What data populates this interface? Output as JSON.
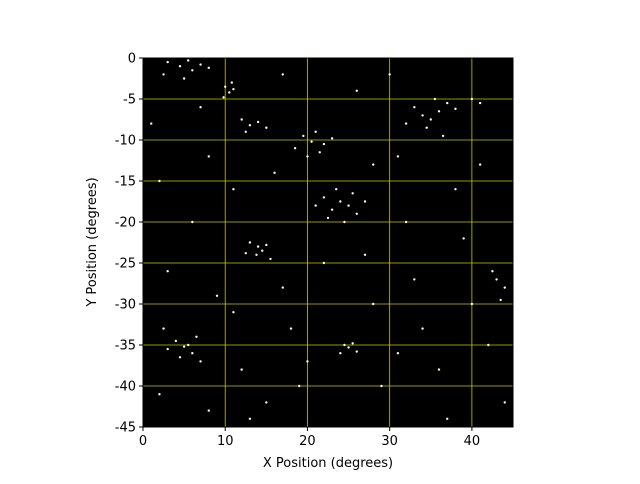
{
  "chart_data": {
    "type": "scatter",
    "xlabel": "X Position (degrees)",
    "ylabel": "Y Position (degrees)",
    "x": [
      3,
      4.5,
      5.5,
      6,
      7,
      2.5,
      5,
      8,
      10,
      10.5,
      11,
      9.8,
      10.8,
      12,
      13,
      14,
      12.5,
      15,
      19.5,
      20.5,
      21,
      22,
      21.5,
      23,
      18.5,
      20,
      22,
      23,
      24,
      25,
      26,
      23.5,
      22.5,
      25.5,
      27,
      21,
      24.5,
      13,
      14,
      14.5,
      15,
      13.8,
      12.5,
      15.5,
      33,
      34,
      35,
      36,
      34.5,
      37,
      38,
      32,
      35.5,
      40,
      41,
      36.5,
      4,
      5,
      5.5,
      6,
      4.5,
      3,
      6.5,
      7,
      2.5,
      24.5,
      25,
      25.5,
      24,
      26,
      43,
      44,
      43.5,
      42.5,
      1,
      2,
      8,
      6,
      3,
      9,
      11,
      16,
      17,
      18,
      19,
      15,
      8,
      12,
      2,
      22,
      27,
      28,
      29,
      31,
      32,
      33,
      34,
      36,
      38,
      39,
      41,
      42,
      44,
      37,
      30,
      26,
      17,
      28,
      11,
      7,
      40,
      31,
      20,
      13
    ],
    "y": [
      -0.5,
      -1,
      -0.3,
      -1.5,
      -0.8,
      -2,
      -2.5,
      -1.2,
      -3.5,
      -4.2,
      -3.8,
      -4.8,
      -3,
      -7.5,
      -8.2,
      -7.8,
      -9,
      -8.5,
      -9.5,
      -10.2,
      -9,
      -10.5,
      -11.5,
      -9.8,
      -11,
      -12,
      -17,
      -18.5,
      -17.5,
      -18,
      -19,
      -16,
      -19.5,
      -16.5,
      -17.5,
      -18,
      -20,
      -22.5,
      -23,
      -23.5,
      -22.8,
      -24,
      -23.8,
      -24.5,
      -6,
      -7,
      -7.5,
      -6.5,
      -8.5,
      -5.5,
      -6.2,
      -8,
      -5,
      -5,
      -5.5,
      -9.5,
      -34.5,
      -35.2,
      -35,
      -36,
      -36.5,
      -35.5,
      -34,
      -37,
      -33,
      -35,
      -35.3,
      -34.8,
      -36,
      -35.8,
      -27,
      -28,
      -29.5,
      -26,
      -8,
      -15,
      -12,
      -20,
      -26,
      -29,
      -31,
      -14,
      -28,
      -33,
      -40,
      -42,
      -43,
      -38,
      -41,
      -25,
      -24,
      -30,
      -40,
      -12,
      -20,
      -27,
      -33,
      -38,
      -16,
      -22,
      -13,
      -35,
      -42,
      -44,
      -2,
      -4,
      -2,
      -13,
      -16,
      -6,
      -30,
      -36,
      -37,
      -44
    ],
    "color": "#fff8dc",
    "background": "#000000",
    "grid": true,
    "grid_color": "#c8c800",
    "xlim": [
      0,
      45
    ],
    "ylim": [
      -45,
      0
    ],
    "xticks": [
      0,
      10,
      20,
      30,
      40
    ],
    "yticks": [
      0,
      -5,
      -10,
      -15,
      -20,
      -25,
      -30,
      -35,
      -40,
      -45
    ]
  }
}
